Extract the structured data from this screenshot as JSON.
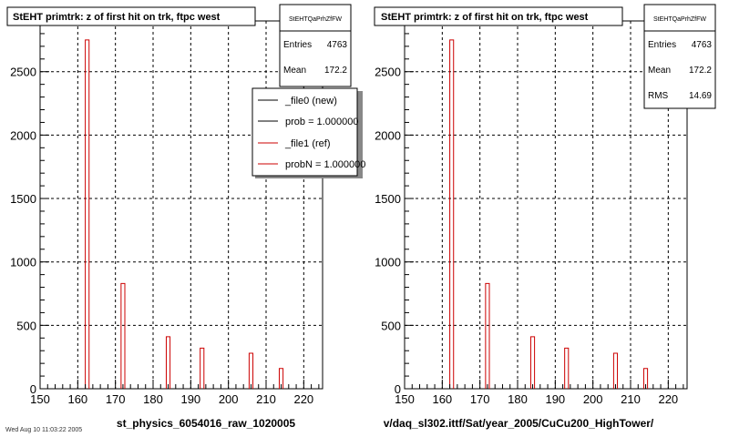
{
  "chart_data": [
    {
      "type": "bar",
      "title": "StEHT primtrk: z of first hit on trk, ftpc west",
      "xlabel": "st_physics_6054016_raw_1020005",
      "ylabel": "",
      "xlim": [
        150,
        225
      ],
      "ylim": [
        0,
        2900
      ],
      "xticks": [
        150,
        160,
        170,
        180,
        190,
        200,
        210,
        220
      ],
      "yticks": [
        0,
        500,
        1000,
        1500,
        2000,
        2500
      ],
      "grid": true,
      "stats": {
        "name": "StEHTQaPrhZfFW",
        "rows": [
          {
            "label": "Entries",
            "value": "4763"
          },
          {
            "label": "Mean",
            "value": "172.2"
          }
        ]
      },
      "legend": {
        "placement": "top-right",
        "entries": [
          {
            "label": "_file0 (new)",
            "color": "#000000"
          },
          {
            "label": "prob = 1.000000",
            "color": "#000000"
          },
          {
            "label": "_file1 (ref)",
            "color": "#cc0000"
          },
          {
            "label": "probN = 1.000000",
            "color": "#cc0000"
          }
        ]
      },
      "series": [
        {
          "color": "#cc0000",
          "x": [
            162.5,
            172,
            184,
            193,
            206,
            214
          ],
          "width": 1,
          "values": [
            2750,
            830,
            410,
            320,
            280,
            160
          ]
        }
      ]
    },
    {
      "type": "bar",
      "title": "StEHT primtrk: z of first hit on trk, ftpc west",
      "xlabel": "v/daq_sl302.ittf/Sat/year_2005/CuCu200_HighTower/",
      "ylabel": "",
      "xlim": [
        150,
        225
      ],
      "ylim": [
        0,
        2900
      ],
      "xticks": [
        150,
        160,
        170,
        180,
        190,
        200,
        210,
        220
      ],
      "yticks": [
        0,
        500,
        1000,
        1500,
        2000,
        2500
      ],
      "grid": true,
      "stats": {
        "name": "StEHTQaPrhZfFW",
        "rows": [
          {
            "label": "Entries",
            "value": "4763"
          },
          {
            "label": "Mean",
            "value": "172.2"
          },
          {
            "label": "RMS",
            "value": "14.69"
          }
        ]
      },
      "series": [
        {
          "color": "#cc0000",
          "x": [
            162.5,
            172,
            184,
            193,
            206,
            214
          ],
          "width": 1,
          "values": [
            2750,
            830,
            410,
            320,
            280,
            160
          ]
        }
      ]
    }
  ],
  "footer": "Wed Aug 10 11:03:22 2005"
}
